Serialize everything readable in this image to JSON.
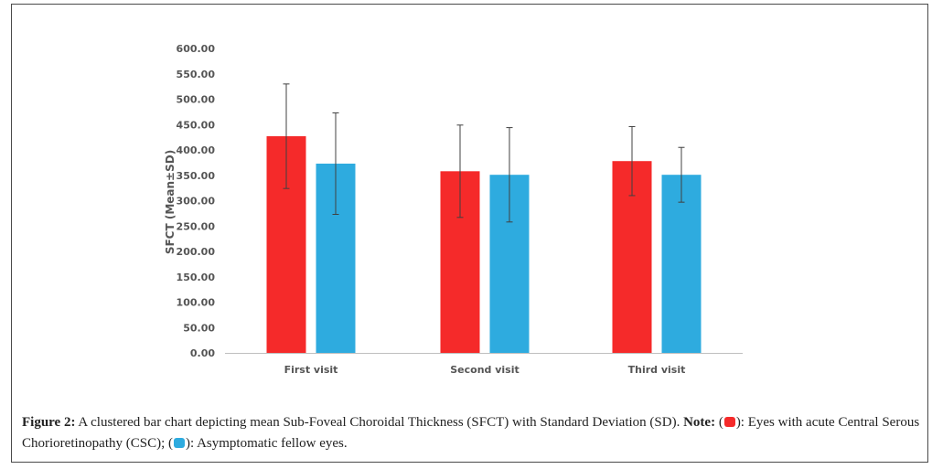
{
  "chart_data": {
    "type": "bar",
    "categories": [
      "First visit",
      "Second visit",
      "Third visit"
    ],
    "series": [
      {
        "name": "Eyes with acute Central Serous Chorioretinopathy (CSC)",
        "color": "#f52a2a",
        "values": [
          427,
          358,
          378
        ],
        "sd": [
          103,
          91,
          68
        ]
      },
      {
        "name": "Asymptomatic fellow eyes",
        "color": "#2eabdf",
        "values": [
          373,
          351,
          351
        ],
        "sd": [
          100,
          93,
          54
        ]
      }
    ],
    "ylabel": "SFCT (Mean±SD)",
    "xlabel": "",
    "ylim": [
      0,
      600
    ],
    "yticks": [
      "0.00",
      "50.00",
      "100.00",
      "150.00",
      "200.00",
      "250.00",
      "300.00",
      "350.00",
      "400.00",
      "450.00",
      "500.00",
      "550.00",
      "600.00"
    ],
    "grid": false
  },
  "caption": {
    "figure_label": "Figure 2:",
    "text": " A clustered bar chart depicting mean Sub-Foveal Choroidal Thickness (SFCT) with Standard Deviation (SD). ",
    "note_label": "Note:",
    "legend_red_open": " (",
    "legend_red_text": "): Eyes with acute Central Serous Chorioretinopathy (CSC); (",
    "legend_blue_text": "): Asymptomatic fellow eyes."
  }
}
